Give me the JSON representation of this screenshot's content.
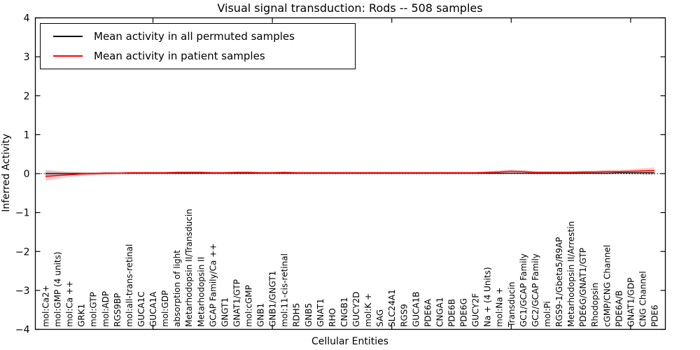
{
  "chart_data": {
    "type": "line",
    "title": "Visual signal transduction: Rods -- 508 samples",
    "xlabel": "Cellular Entities",
    "ylabel": "Inferred Activity",
    "ylim": [
      -4,
      4
    ],
    "yticks": [
      -4,
      -3,
      -2,
      -1,
      0,
      1,
      2,
      3,
      4
    ],
    "xticks": [
      10,
      20,
      30,
      40,
      50
    ],
    "grid": false,
    "zero_line": "dotted",
    "legend_position": "upper left",
    "categories": [
      "mol:Ca2+",
      "mol:GMP (4 units)",
      "mol:Ca ++",
      "GRK1",
      "mol:GTP",
      "mol:ADP",
      "RGS9BP",
      "mol:all-trans-retinal",
      "GUCA1C",
      "GUCA1A",
      "mol:GDP",
      "absorption of light",
      "Metarhodopsin II/Transducin",
      "Metarhodopsin II",
      "GCAP Family/Ca ++",
      "GNGT1",
      "GNAT1/GTP",
      "mol:cGMP",
      "GNB1",
      "GNB1/GNGT1",
      "mol:11-cis-retinal",
      "RDH5",
      "GNB5",
      "GNAT1",
      "RHO",
      "CNGB1",
      "GUCY2D",
      "mol:K +",
      "SAG",
      "SLC24A1",
      "RGS9",
      "GUCA1B",
      "PDE6A",
      "CNGA1",
      "PDE6B",
      "PDE6G",
      "GUCY2F",
      "Na + (4 Units)",
      "mol:Na +",
      "Transducin",
      "GC1/GCAP Family",
      "GC2/GCAP Family",
      "mol:Pi",
      "RGS9-1/Gbeta5/R9AP",
      "Metarhodopsin II/Arrestin",
      "PDE6G/GNAT1/GTP",
      "Rhodopsin",
      "cGMP/CNG Channel",
      "PDE6A/B",
      "GNAT1/GDP",
      "CNG Channel",
      "PDE6"
    ],
    "series": [
      {
        "name": "Mean activity in all permuted samples",
        "color": "#000000",
        "band_opacity": 0.15,
        "values": [
          0.0,
          0.0,
          0.0,
          0.0,
          0.0,
          0.01,
          0.01,
          0.01,
          0.01,
          0.01,
          0.01,
          0.01,
          0.01,
          0.01,
          0.01,
          0.01,
          0.01,
          0.01,
          0.01,
          0.01,
          0.01,
          0.01,
          0.01,
          0.01,
          0.01,
          0.01,
          0.01,
          0.01,
          0.01,
          0.01,
          0.01,
          0.01,
          0.01,
          0.01,
          0.01,
          0.01,
          0.01,
          0.01,
          0.01,
          0.01,
          0.01,
          0.01,
          0.01,
          0.01,
          0.01,
          0.01,
          0.01,
          0.01,
          0.02,
          0.02,
          0.02,
          0.02
        ],
        "band": [
          0.1,
          0.07,
          0.05,
          0.04,
          0.03,
          0.03,
          0.02,
          0.02,
          0.02,
          0.02,
          0.02,
          0.02,
          0.02,
          0.02,
          0.02,
          0.02,
          0.02,
          0.02,
          0.02,
          0.02,
          0.02,
          0.02,
          0.02,
          0.02,
          0.02,
          0.02,
          0.02,
          0.02,
          0.02,
          0.02,
          0.02,
          0.02,
          0.02,
          0.02,
          0.02,
          0.02,
          0.02,
          0.02,
          0.02,
          0.02,
          0.02,
          0.02,
          0.02,
          0.02,
          0.02,
          0.02,
          0.02,
          0.03,
          0.03,
          0.04,
          0.05,
          0.06
        ]
      },
      {
        "name": "Mean activity in patient samples",
        "color": "#ff0000",
        "band_opacity": 0.18,
        "values": [
          -0.07,
          -0.05,
          -0.03,
          -0.01,
          0.0,
          0.01,
          0.01,
          0.02,
          0.02,
          0.02,
          0.02,
          0.03,
          0.03,
          0.03,
          0.02,
          0.02,
          0.03,
          0.03,
          0.02,
          0.02,
          0.03,
          0.02,
          0.02,
          0.02,
          0.02,
          0.02,
          0.02,
          0.02,
          0.02,
          0.02,
          0.02,
          0.02,
          0.02,
          0.02,
          0.02,
          0.02,
          0.02,
          0.03,
          0.04,
          0.06,
          0.05,
          0.03,
          0.03,
          0.03,
          0.03,
          0.04,
          0.04,
          0.05,
          0.05,
          0.06,
          0.07,
          0.08
        ],
        "band": [
          0.12,
          0.09,
          0.06,
          0.05,
          0.04,
          0.04,
          0.03,
          0.03,
          0.03,
          0.03,
          0.03,
          0.03,
          0.03,
          0.03,
          0.03,
          0.03,
          0.03,
          0.03,
          0.03,
          0.03,
          0.03,
          0.03,
          0.03,
          0.03,
          0.03,
          0.03,
          0.03,
          0.03,
          0.03,
          0.03,
          0.03,
          0.03,
          0.03,
          0.03,
          0.03,
          0.03,
          0.03,
          0.04,
          0.05,
          0.05,
          0.04,
          0.04,
          0.04,
          0.04,
          0.04,
          0.04,
          0.04,
          0.05,
          0.05,
          0.06,
          0.07,
          0.08
        ]
      }
    ]
  }
}
